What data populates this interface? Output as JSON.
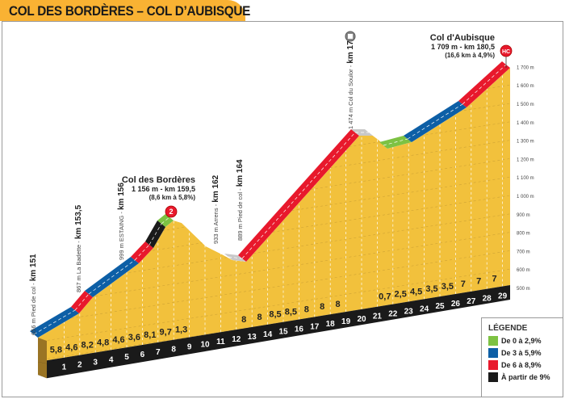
{
  "title": "COL DES BORDÈRES – COL D’AUBISQUE",
  "colors": {
    "green": "#7dc243",
    "blue": "#0d5fa6",
    "red": "#e8192c",
    "black": "#1a1a1a",
    "terrain": "#f2c13c",
    "grey": "#c8c8c8"
  },
  "climbs": [
    {
      "name": "Col des Bordères",
      "line1": "1 156 m - km 159,5",
      "line2": "(8,6 km à 5,8%)",
      "category": "2"
    },
    {
      "name": "Col d'Aubisque",
      "line1": "1 709 m - km 180,5",
      "line2": "(16,6 km à 4,9%)",
      "category": "HC"
    }
  ],
  "waypoints": [
    {
      "desc": "656 m Pied de col - ",
      "km": "km 151"
    },
    {
      "desc": "867 m La Badette - ",
      "km": "km 153,5"
    },
    {
      "desc": "999 m ESTAING - ",
      "km": "km 156"
    },
    {
      "desc": "933 m Arrens - ",
      "km": "km 162"
    },
    {
      "desc": "889 m Pied de col - ",
      "km": "km 164"
    },
    {
      "desc": "1 474 m Col du Soulor - ",
      "km": "km 171"
    }
  ],
  "km_markers": [
    "1",
    "2",
    "3",
    "4",
    "5",
    "6",
    "7",
    "8",
    "9",
    "10",
    "11",
    "12",
    "13",
    "14",
    "15",
    "16",
    "17",
    "18",
    "19",
    "20",
    "21",
    "22",
    "23",
    "24",
    "25",
    "26",
    "27",
    "28",
    "29"
  ],
  "gradients": [
    "5,8",
    "4,6",
    "8,2",
    "4,8",
    "4,6",
    "3,6",
    "8,1",
    "9,7",
    "1,3",
    "",
    "",
    "",
    "8",
    "8",
    "8,5",
    "8,5",
    "8",
    "8",
    "8",
    "",
    "",
    "0,7",
    "2,5",
    "4,5",
    "3,5",
    "3,5",
    "7",
    "7",
    "7"
  ],
  "altitude_labels": [
    "500 m",
    "600 m",
    "700 m",
    "800 m",
    "900 m",
    "1 000 m",
    "1 100 m",
    "1 200 m",
    "1 300 m",
    "1 400 m",
    "1 500 m",
    "1 600 m",
    "1 700 m"
  ],
  "legend": {
    "title": "LÉGENDE",
    "items": [
      {
        "label": "De 0 à 2,9%",
        "color": "#7dc243"
      },
      {
        "label": "De 3 à 5,9%",
        "color": "#0d5fa6"
      },
      {
        "label": "De 6 à 8,9%",
        "color": "#e8192c"
      },
      {
        "label": "À partir de 9%",
        "color": "#1a1a1a"
      }
    ]
  }
}
